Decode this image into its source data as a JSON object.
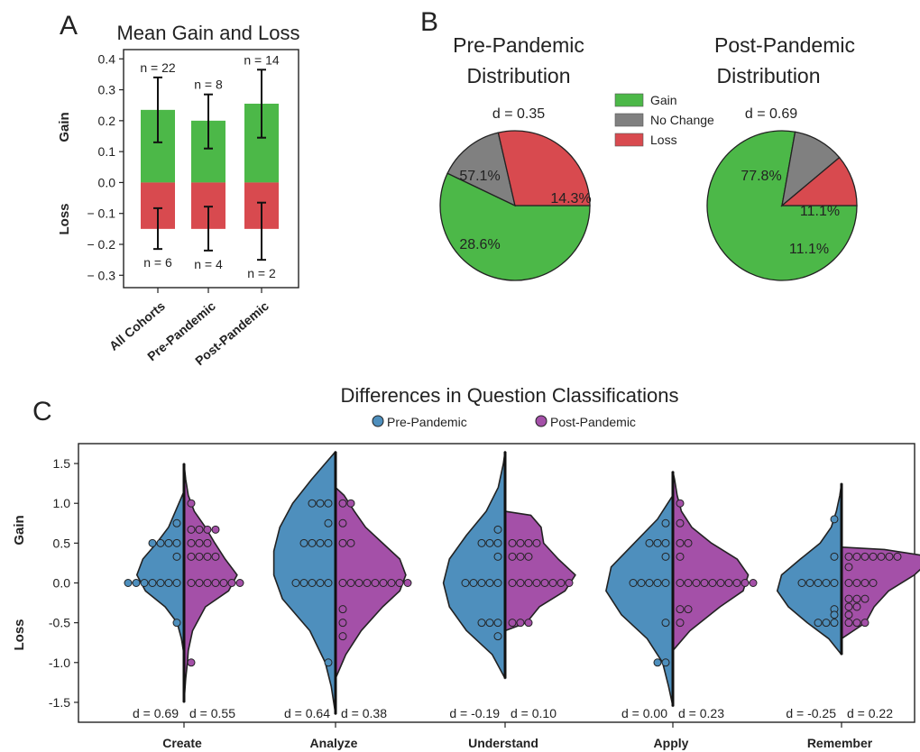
{
  "panels": {
    "a": "A",
    "b": "B",
    "c": "C"
  },
  "colors": {
    "gain": "#4cb848",
    "no_change": "#808080",
    "loss": "#d84a4f",
    "pre": "#4e8fbd",
    "post": "#a450a8",
    "pre_text": "#3a78a8",
    "post_text": "#9b3c9e"
  },
  "chart_data": [
    {
      "type": "bar",
      "title": "Mean Gain and Loss",
      "categories": [
        "All Cohorts",
        "Pre-Pandemic",
        "Post-Pandemic"
      ],
      "ylabel_gain": "Gain",
      "ylabel_loss": "Loss",
      "ylim": [
        -0.34,
        0.43
      ],
      "yticks": [
        0.4,
        0.3,
        0.2,
        0.1,
        0.0,
        -0.1,
        -0.2,
        -0.3
      ],
      "ytick_labels": [
        "0.4",
        "0.3",
        "0.2",
        "0.1",
        "0.0",
        "− 0.1",
        "− 0.2",
        "− 0.3"
      ],
      "series": [
        {
          "name": "Gain",
          "values": [
            0.235,
            0.2,
            0.255
          ],
          "err_low": [
            0.13,
            0.11,
            0.145
          ],
          "err_high": [
            0.34,
            0.285,
            0.365
          ],
          "n_labels": [
            "n = 22",
            "n = 8",
            "n = 14"
          ]
        },
        {
          "name": "Loss",
          "values": [
            -0.15,
            -0.15,
            -0.15
          ],
          "err_low": [
            -0.215,
            -0.22,
            -0.25
          ],
          "err_high": [
            -0.083,
            -0.078,
            -0.065
          ],
          "n_labels": [
            "n = 6",
            "n = 4",
            "n = 2"
          ]
        }
      ]
    },
    {
      "type": "pie",
      "title_line1": "Pre-Pandemic",
      "title_line2": "Distribution",
      "d_label": "d = 0.35",
      "slices": [
        {
          "name": "Gain",
          "value": 57.1,
          "label": "57.1%"
        },
        {
          "name": "No Change",
          "value": 14.3,
          "label": "14.3%"
        },
        {
          "name": "Loss",
          "value": 28.6,
          "label": "28.6%"
        }
      ]
    },
    {
      "type": "pie",
      "title_line1": "Post-Pandemic",
      "title_line2": "Distribution",
      "d_label": "d = 0.69",
      "slices": [
        {
          "name": "Gain",
          "value": 77.8,
          "label": "77.8%"
        },
        {
          "name": "No Change",
          "value": 11.1,
          "label": "11.1%"
        },
        {
          "name": "Loss",
          "value": 11.1,
          "label": "11.1%"
        }
      ]
    },
    {
      "type": "violin",
      "title": "Differences in Question Classifications",
      "ylabel_gain": "Gain",
      "ylabel_loss": "Loss",
      "ylim": [
        -1.75,
        1.75
      ],
      "yticks": [
        1.5,
        1.0,
        0.5,
        0.0,
        -0.5,
        -1.0,
        -1.5
      ],
      "ytick_labels": [
        "1.5",
        "1.0",
        "0.5",
        "0.0",
        "-0.5",
        "-1.0",
        "-1.5"
      ],
      "legend": [
        "Pre-Pandemic",
        "Post-Pandemic"
      ],
      "categories": [
        {
          "name": "Create",
          "d_pre": "d = 0.69",
          "d_post": "d = 0.55",
          "pre_range": [
            -0.9,
            1.15
          ],
          "pre_profile": [
            [
              -0.9,
              0
            ],
            [
              -0.7,
              0.03
            ],
            [
              -0.5,
              0.08
            ],
            [
              -0.3,
              0.22
            ],
            [
              -0.1,
              0.45
            ],
            [
              0.1,
              0.55
            ],
            [
              0.3,
              0.48
            ],
            [
              0.5,
              0.32
            ],
            [
              0.7,
              0.18
            ],
            [
              0.9,
              0.1
            ],
            [
              1.0,
              0.06
            ],
            [
              1.15,
              0
            ]
          ],
          "post_range": [
            -1.5,
            1.5
          ],
          "post_profile": [
            [
              -1.5,
              0
            ],
            [
              -1.2,
              0.02
            ],
            [
              -1.0,
              0.04
            ],
            [
              -0.85,
              0.05
            ],
            [
              -0.6,
              0.1
            ],
            [
              -0.3,
              0.25
            ],
            [
              -0.1,
              0.52
            ],
            [
              0.1,
              0.62
            ],
            [
              0.3,
              0.48
            ],
            [
              0.5,
              0.36
            ],
            [
              0.7,
              0.25
            ],
            [
              0.9,
              0.12
            ],
            [
              1.1,
              0.05
            ],
            [
              1.3,
              0.02
            ],
            [
              1.5,
              0
            ]
          ],
          "pre_points": [
            [
              0,
              7
            ],
            [
              0.33,
              1
            ],
            [
              0.5,
              4
            ],
            [
              0.75,
              1
            ],
            [
              -0.5,
              1
            ]
          ],
          "post_points": [
            [
              0,
              7
            ],
            [
              0.33,
              4
            ],
            [
              0.5,
              3
            ],
            [
              0.67,
              4
            ],
            [
              1,
              1
            ],
            [
              -1,
              1
            ]
          ]
        },
        {
          "name": "Analyze",
          "d_pre": "d = 0.64",
          "d_post": "d = 0.38",
          "pre_range": [
            -1.65,
            1.65
          ],
          "pre_profile": [
            [
              -1.65,
              0
            ],
            [
              -1.3,
              0.05
            ],
            [
              -1.0,
              0.12
            ],
            [
              -0.6,
              0.3
            ],
            [
              -0.2,
              0.62
            ],
            [
              0.1,
              0.72
            ],
            [
              0.4,
              0.72
            ],
            [
              0.7,
              0.65
            ],
            [
              1.0,
              0.5
            ],
            [
              1.3,
              0.28
            ],
            [
              1.55,
              0.08
            ],
            [
              1.65,
              0
            ]
          ],
          "post_range": [
            -1.2,
            1.2
          ],
          "post_profile": [
            [
              -1.2,
              0
            ],
            [
              -0.9,
              0.12
            ],
            [
              -0.6,
              0.3
            ],
            [
              -0.3,
              0.55
            ],
            [
              -0.1,
              0.75
            ],
            [
              0.1,
              0.82
            ],
            [
              0.3,
              0.75
            ],
            [
              0.5,
              0.55
            ],
            [
              0.7,
              0.35
            ],
            [
              0.9,
              0.22
            ],
            [
              1.1,
              0.1
            ],
            [
              1.2,
              0
            ]
          ],
          "pre_points": [
            [
              0,
              5
            ],
            [
              0.5,
              4
            ],
            [
              0.75,
              1
            ],
            [
              1,
              3
            ],
            [
              -1,
              1
            ]
          ],
          "post_points": [
            [
              0,
              9
            ],
            [
              0.5,
              2
            ],
            [
              0.75,
              1
            ],
            [
              1,
              2
            ],
            [
              -0.33,
              1
            ],
            [
              -0.5,
              1
            ],
            [
              -0.67,
              1
            ]
          ]
        },
        {
          "name": "Understand",
          "d_pre": "d = -0.19",
          "d_post": "d = 0.10",
          "pre_range": [
            -1.2,
            1.65
          ],
          "pre_profile": [
            [
              -1.2,
              0
            ],
            [
              -0.9,
              0.15
            ],
            [
              -0.6,
              0.45
            ],
            [
              -0.3,
              0.65
            ],
            [
              0.0,
              0.72
            ],
            [
              0.3,
              0.65
            ],
            [
              0.6,
              0.45
            ],
            [
              0.9,
              0.22
            ],
            [
              1.2,
              0.08
            ],
            [
              1.5,
              0.02
            ],
            [
              1.65,
              0
            ]
          ],
          "post_range": [
            -0.6,
            0.9
          ],
          "post_profile": [
            [
              -0.6,
              0
            ],
            [
              -0.5,
              0.25
            ],
            [
              -0.3,
              0.4
            ],
            [
              -0.1,
              0.7
            ],
            [
              0.1,
              0.82
            ],
            [
              0.3,
              0.62
            ],
            [
              0.5,
              0.45
            ],
            [
              0.7,
              0.42
            ],
            [
              0.85,
              0.3
            ],
            [
              0.9,
              0
            ]
          ],
          "pre_points": [
            [
              0,
              5
            ],
            [
              0.33,
              1
            ],
            [
              0.5,
              3
            ],
            [
              0.67,
              1
            ],
            [
              -0.5,
              3
            ],
            [
              -0.67,
              1
            ]
          ],
          "post_points": [
            [
              0,
              8
            ],
            [
              0.33,
              3
            ],
            [
              0.5,
              4
            ],
            [
              -0.5,
              3
            ]
          ]
        },
        {
          "name": "Apply",
          "d_pre": "d = 0.00",
          "d_post": "d = 0.23",
          "pre_range": [
            -1.55,
            1.1
          ],
          "pre_profile": [
            [
              -1.55,
              0
            ],
            [
              -1.3,
              0.05
            ],
            [
              -1.0,
              0.12
            ],
            [
              -0.7,
              0.3
            ],
            [
              -0.4,
              0.6
            ],
            [
              -0.1,
              0.78
            ],
            [
              0.2,
              0.72
            ],
            [
              0.5,
              0.45
            ],
            [
              0.8,
              0.18
            ],
            [
              1.0,
              0.06
            ],
            [
              1.1,
              0
            ]
          ],
          "post_range": [
            -0.85,
            1.4
          ],
          "post_profile": [
            [
              -0.85,
              0
            ],
            [
              -0.6,
              0.2
            ],
            [
              -0.3,
              0.55
            ],
            [
              -0.1,
              0.82
            ],
            [
              0.1,
              0.88
            ],
            [
              0.3,
              0.75
            ],
            [
              0.5,
              0.45
            ],
            [
              0.7,
              0.22
            ],
            [
              0.9,
              0.1
            ],
            [
              1.1,
              0.05
            ],
            [
              1.3,
              0.02
            ],
            [
              1.4,
              0
            ]
          ],
          "pre_points": [
            [
              0,
              5
            ],
            [
              0.33,
              1
            ],
            [
              0.5,
              3
            ],
            [
              0.75,
              1
            ],
            [
              -0.5,
              1
            ],
            [
              -1,
              2
            ]
          ],
          "post_points": [
            [
              0,
              10
            ],
            [
              0.33,
              1
            ],
            [
              0.5,
              2
            ],
            [
              0.75,
              1
            ],
            [
              1,
              1
            ],
            [
              -0.33,
              2
            ],
            [
              -0.5,
              1
            ]
          ]
        },
        {
          "name": "Remember",
          "d_pre": "d = -0.25",
          "d_post": "d = 0.22",
          "pre_range": [
            -0.9,
            1.25
          ],
          "pre_profile": [
            [
              -0.9,
              0
            ],
            [
              -0.7,
              0.15
            ],
            [
              -0.5,
              0.4
            ],
            [
              -0.3,
              0.62
            ],
            [
              -0.1,
              0.75
            ],
            [
              0.1,
              0.7
            ],
            [
              0.3,
              0.48
            ],
            [
              0.5,
              0.25
            ],
            [
              0.7,
              0.12
            ],
            [
              0.9,
              0.06
            ],
            [
              1.1,
              0.02
            ],
            [
              1.25,
              0
            ]
          ],
          "post_range": [
            -0.7,
            0.45
          ],
          "post_profile": [
            [
              -0.7,
              0
            ],
            [
              -0.5,
              0.28
            ],
            [
              -0.3,
              0.38
            ],
            [
              -0.1,
              0.55
            ],
            [
              0.1,
              0.85
            ],
            [
              0.25,
              1.0
            ],
            [
              0.35,
              0.92
            ],
            [
              0.42,
              0.5
            ],
            [
              0.45,
              0
            ]
          ],
          "pre_points": [
            [
              0,
              5
            ],
            [
              0.33,
              1
            ],
            [
              -0.33,
              1
            ],
            [
              -0.4,
              1
            ],
            [
              -0.5,
              3
            ],
            [
              0.8,
              1
            ]
          ],
          "post_points": [
            [
              0,
              4
            ],
            [
              0.33,
              7
            ],
            [
              0.2,
              1
            ],
            [
              -0.2,
              3
            ],
            [
              -0.3,
              2
            ],
            [
              -0.4,
              1
            ],
            [
              -0.5,
              3
            ]
          ]
        }
      ]
    }
  ]
}
